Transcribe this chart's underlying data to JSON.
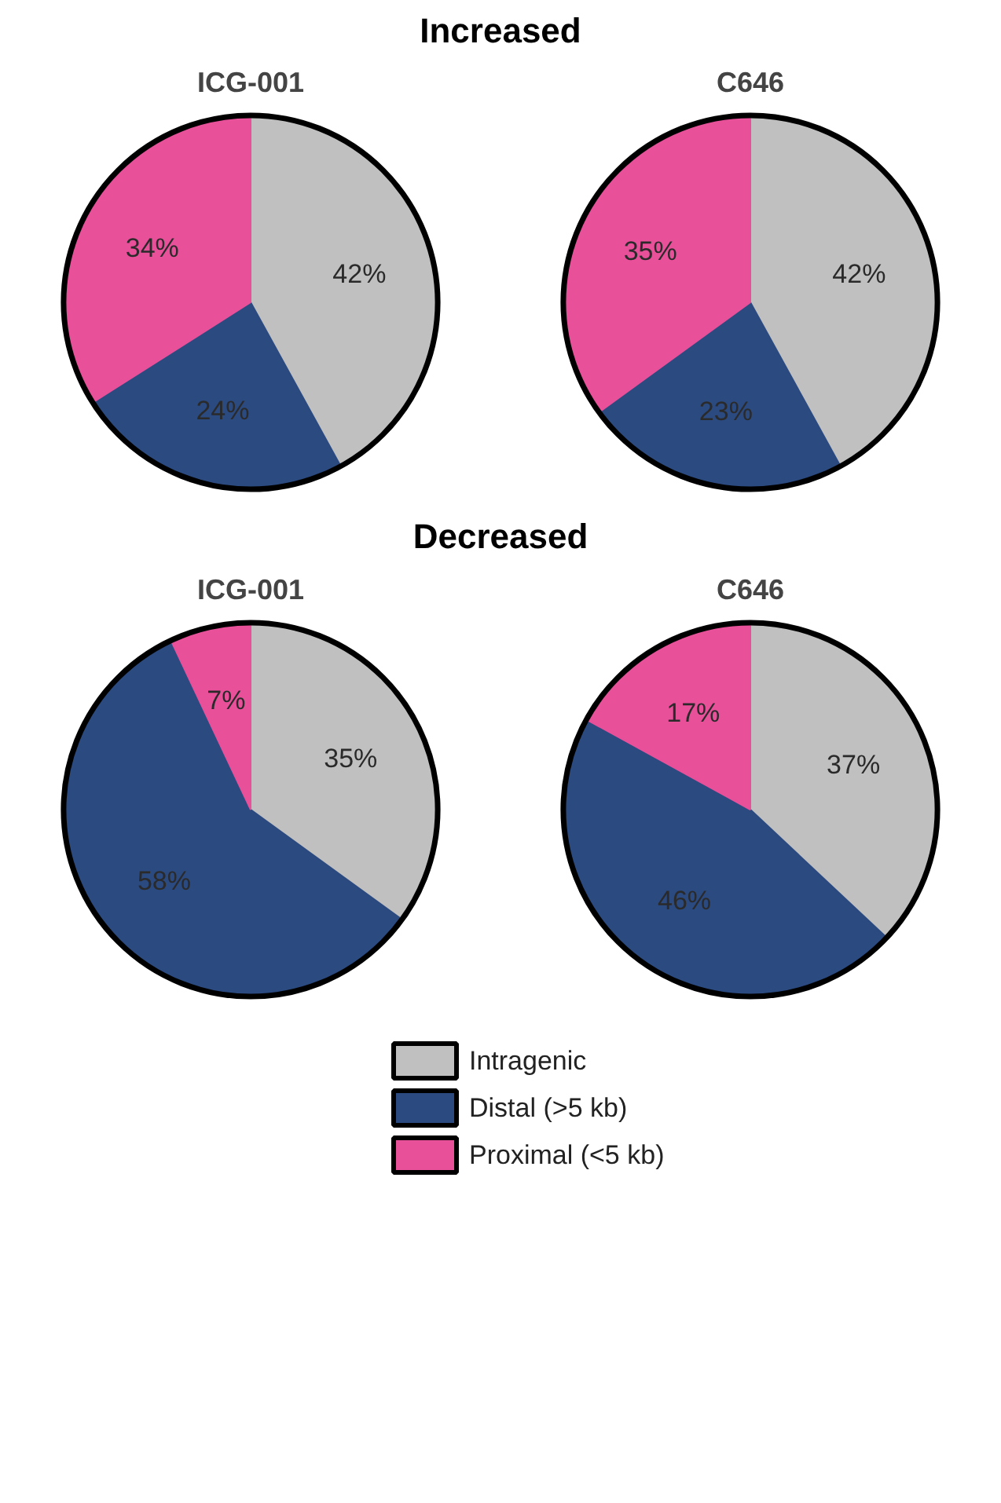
{
  "chart_data": [
    {
      "type": "pie",
      "title": "ICG-001",
      "annotations": [
        "Increased"
      ],
      "values": [
        42,
        24,
        34
      ],
      "value_labels": [
        "42%",
        "24%",
        "34%"
      ],
      "colors": [
        "#c0c0c0",
        "#2b4a80",
        "#e8509a"
      ]
    },
    {
      "type": "pie",
      "title": "C646",
      "values": [
        42,
        23,
        35
      ],
      "value_labels": [
        "42%",
        "23%",
        "35%"
      ],
      "colors": [
        "#c0c0c0",
        "#2b4a80",
        "#e8509a"
      ]
    },
    {
      "type": "pie",
      "title": "ICG-001",
      "annotations": [
        "Decreased"
      ],
      "values": [
        35,
        58,
        7
      ],
      "value_labels": [
        "35%",
        "58%",
        "7%"
      ],
      "colors": [
        "#c0c0c0",
        "#2b4a80",
        "#e8509a"
      ]
    },
    {
      "type": "pie",
      "title": "C646",
      "categories": [
        "Intragenic",
        "Distal (>5 kb)",
        "Proximal (<5 kb)"
      ],
      "values": [
        37,
        46,
        17
      ],
      "value_labels": [
        "37%",
        "46%",
        "17%"
      ],
      "colors": [
        "#c0c0c0",
        "#2b4a80",
        "#e8509a"
      ],
      "legend": "bottom"
    }
  ]
}
